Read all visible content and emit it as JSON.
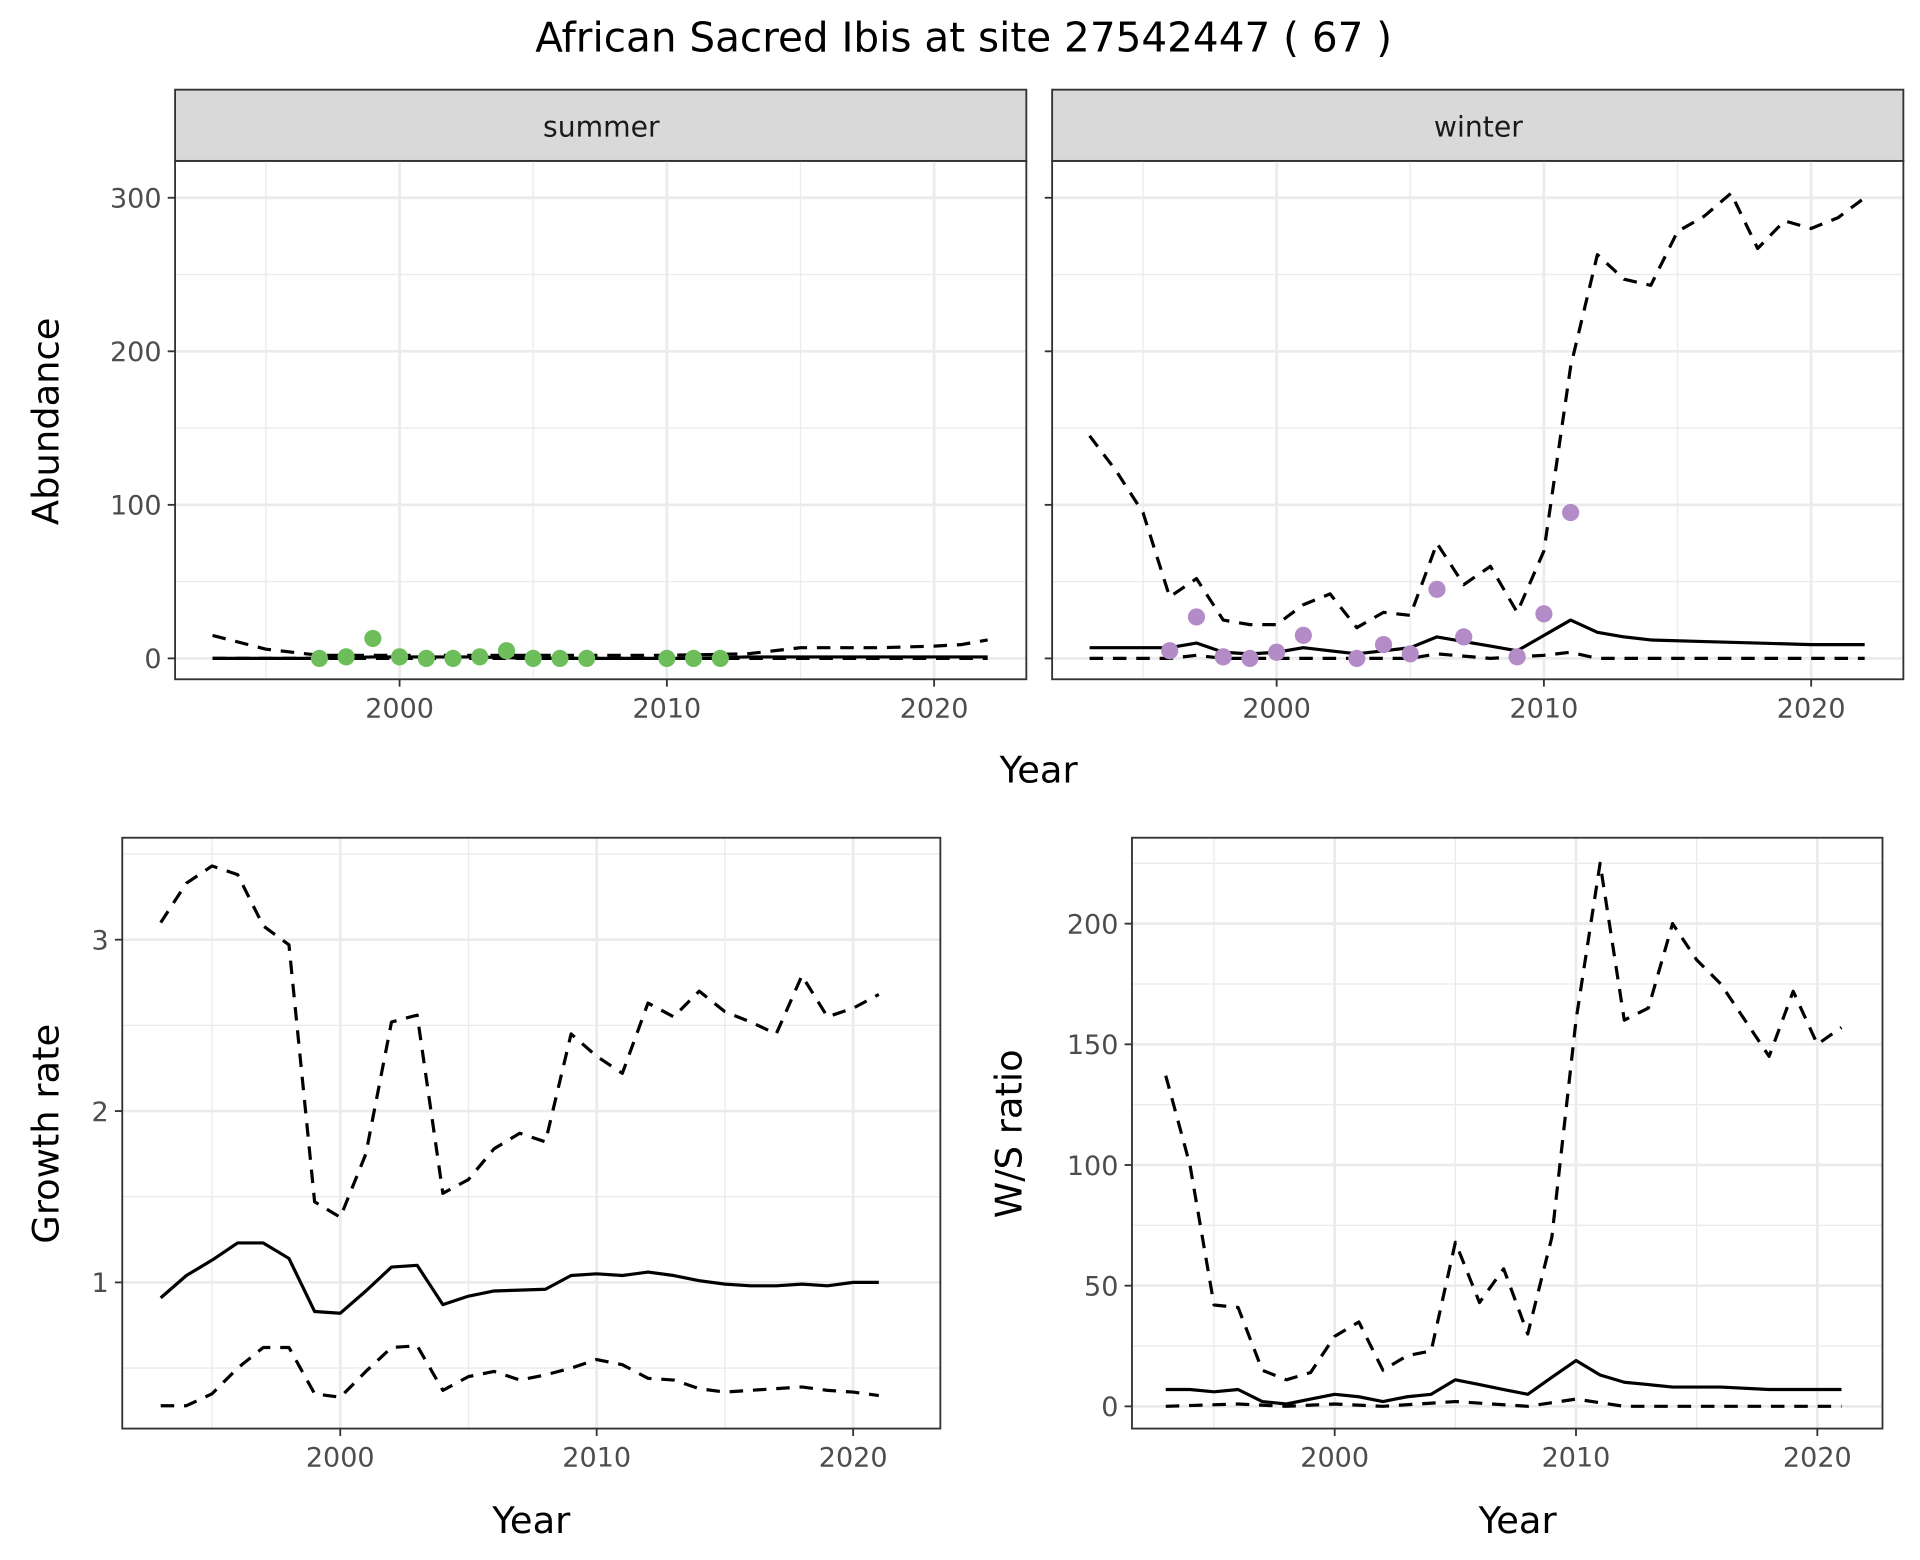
{
  "chart_data": {
    "title": "African Sacred Ibis at site 27542447 ( 67 )",
    "colors": {
      "summer_points": "#6DBE5B",
      "winter_points": "#B28BC7",
      "lines": "#000000",
      "strip_bg": "#D9D9D9",
      "grid": "#EBEBEB"
    },
    "panels": [
      {
        "id": "abundance-summer",
        "type": "line+scatter",
        "strip": "summer",
        "ylabel": "Abundance",
        "xlabel": "Year",
        "xlim": [
          1991.6,
          2023.45
        ],
        "ylim": [
          -13.6,
          324
        ],
        "xticks": [
          2000,
          2010,
          2020
        ],
        "yticks": [
          0,
          100,
          200,
          300
        ],
        "grid": true,
        "points": {
          "x": [
            1997,
            1998,
            1999,
            2000,
            2001,
            2002,
            2003,
            2004,
            2005,
            2006,
            2007,
            2010,
            2011,
            2012
          ],
          "y": [
            0,
            1,
            13,
            1,
            0,
            0,
            1,
            5,
            0,
            0,
            0,
            0,
            0,
            0
          ]
        },
        "series": [
          {
            "style": "solid",
            "x": [
              1993,
              1995,
              1997,
              1999,
              2001,
              2003,
              2005,
              2007,
              2009,
              2011,
              2013,
              2015,
              2017,
              2019,
              2022
            ],
            "y": [
              0,
              0,
              0,
              1,
              1,
              1,
              0,
              0,
              0,
              0,
              1,
              1,
              1,
              1,
              1
            ]
          },
          {
            "style": "dashed",
            "x": [
              1993,
              1995,
              1997,
              2000,
              2005,
              2010,
              2013,
              2015,
              2018,
              2020,
              2021,
              2022
            ],
            "y": [
              15,
              6,
              2,
              2,
              2,
              2,
              3,
              7,
              7,
              8,
              9,
              12
            ]
          },
          {
            "style": "dashed",
            "x": [
              1993,
              2022
            ],
            "y": [
              0,
              0
            ]
          }
        ]
      },
      {
        "id": "abundance-winter",
        "type": "line+scatter",
        "strip": "winter",
        "xlim": [
          1991.6,
          2023.45
        ],
        "ylim": [
          -13.6,
          324
        ],
        "xticks": [
          2000,
          2010,
          2020
        ],
        "yticks": [
          0,
          100,
          200,
          300
        ],
        "grid": true,
        "points": {
          "x": [
            1996,
            1997,
            1998,
            1999,
            2000,
            2001,
            2003,
            2004,
            2005,
            2006,
            2007,
            2009,
            2010,
            2011
          ],
          "y": [
            5,
            27,
            1,
            0,
            4,
            15,
            0,
            9,
            3,
            45,
            14,
            1,
            29,
            95
          ]
        },
        "series": [
          {
            "style": "solid",
            "x": [
              1993,
              1994,
              1995,
              1996,
              1997,
              1998,
              1999,
              2000,
              2001,
              2002,
              2003,
              2004,
              2005,
              2006,
              2007,
              2008,
              2009,
              2010,
              2011,
              2012,
              2013,
              2014,
              2016,
              2018,
              2020,
              2022
            ],
            "y": [
              7,
              7,
              7,
              7,
              10,
              4,
              3,
              4,
              7,
              5,
              3,
              5,
              7,
              14,
              11,
              8,
              5,
              15,
              25,
              17,
              14,
              12,
              11,
              10,
              9,
              9
            ]
          },
          {
            "style": "dashed",
            "x": [
              1993,
              1994,
              1995,
              1996,
              1997,
              1998,
              1999,
              2000,
              2001,
              2002,
              2003,
              2004,
              2005,
              2006,
              2007,
              2008,
              2009,
              2010,
              2011,
              2012,
              2013,
              2014,
              2015,
              2016,
              2017,
              2018,
              2019,
              2020,
              2021,
              2022
            ],
            "y": [
              145,
              122,
              95,
              40,
              52,
              25,
              22,
              22,
              35,
              42,
              20,
              30,
              28,
              75,
              48,
              60,
              30,
              70,
              190,
              263,
              247,
              243,
              278,
              288,
              303,
              267,
              285,
              280,
              287,
              300
            ]
          },
          {
            "style": "dashed",
            "x": [
              1993,
              1996,
              1997,
              1998,
              2005,
              2006,
              2008,
              2010,
              2011,
              2012,
              2022
            ],
            "y": [
              0,
              0,
              2,
              0,
              0,
              3,
              0,
              2,
              4,
              0,
              0
            ]
          }
        ]
      },
      {
        "id": "growth-rate",
        "type": "line",
        "ylabel": "Growth rate",
        "xlabel": "Year",
        "xlim": [
          1991.5,
          2023.4
        ],
        "ylim": [
          0.147,
          3.595
        ],
        "xticks": [
          2000,
          2010,
          2020
        ],
        "yticks": [
          1,
          2,
          3
        ],
        "grid": true,
        "series": [
          {
            "style": "solid",
            "x": [
              1993,
              1994,
              1995,
              1996,
              1997,
              1998,
              1999,
              2000,
              2001,
              2002,
              2003,
              2004,
              2005,
              2006,
              2007,
              2008,
              2009,
              2010,
              2011,
              2012,
              2013,
              2014,
              2015,
              2016,
              2017,
              2018,
              2019,
              2020,
              2021
            ],
            "y": [
              0.91,
              1.04,
              1.13,
              1.23,
              1.23,
              1.14,
              0.83,
              0.82,
              0.95,
              1.09,
              1.1,
              0.87,
              0.92,
              0.95,
              0.955,
              0.96,
              1.04,
              1.05,
              1.04,
              1.06,
              1.04,
              1.01,
              0.99,
              0.98,
              0.98,
              0.99,
              0.98,
              1.0,
              1.0
            ]
          },
          {
            "style": "dashed",
            "x": [
              1993,
              1994,
              1995,
              1996,
              1997,
              1998,
              1999,
              2000,
              2001,
              2002,
              2003,
              2004,
              2005,
              2006,
              2007,
              2008,
              2009,
              2010,
              2011,
              2012,
              2013,
              2014,
              2015,
              2016,
              2017,
              2018,
              2019,
              2020,
              2021
            ],
            "y": [
              3.1,
              3.33,
              3.43,
              3.38,
              3.08,
              2.97,
              1.47,
              1.38,
              1.75,
              2.52,
              2.56,
              1.52,
              1.6,
              1.78,
              1.87,
              1.82,
              2.45,
              2.32,
              2.22,
              2.63,
              2.55,
              2.7,
              2.58,
              2.52,
              2.45,
              2.79,
              2.55,
              2.6,
              2.68
            ]
          },
          {
            "style": "dashed",
            "x": [
              1993,
              1994,
              1995,
              1996,
              1997,
              1998,
              1999,
              2000,
              2001,
              2002,
              2003,
              2004,
              2005,
              2006,
              2007,
              2008,
              2009,
              2010,
              2011,
              2012,
              2013,
              2014,
              2015,
              2016,
              2017,
              2018,
              2019,
              2020,
              2021
            ],
            "y": [
              0.28,
              0.28,
              0.35,
              0.5,
              0.62,
              0.62,
              0.35,
              0.33,
              0.48,
              0.62,
              0.63,
              0.37,
              0.45,
              0.48,
              0.43,
              0.46,
              0.5,
              0.55,
              0.52,
              0.44,
              0.43,
              0.38,
              0.36,
              0.37,
              0.38,
              0.39,
              0.37,
              0.36,
              0.34
            ]
          }
        ]
      },
      {
        "id": "ws-ratio",
        "type": "line",
        "ylabel": "W/S ratio",
        "xlabel": "Year",
        "xlim": [
          1991.6,
          2022.7
        ],
        "ylim": [
          -9.2,
          235.6
        ],
        "xticks": [
          2000,
          2010,
          2020
        ],
        "yticks": [
          0,
          50,
          100,
          150,
          200
        ],
        "grid": true,
        "series": [
          {
            "style": "solid",
            "x": [
              1993,
              1994,
              1995,
              1996,
              1997,
              1998,
              1999,
              2000,
              2001,
              2002,
              2003,
              2004,
              2005,
              2006,
              2007,
              2008,
              2009,
              2010,
              2011,
              2012,
              2013,
              2014,
              2016,
              2018,
              2021
            ],
            "y": [
              7,
              7,
              6,
              7,
              2,
              1,
              3,
              5,
              4,
              2,
              4,
              5,
              11,
              9,
              7,
              5,
              12,
              19,
              13,
              10,
              9,
              8,
              8,
              7,
              7
            ]
          },
          {
            "style": "dashed",
            "x": [
              1993,
              1994,
              1995,
              1996,
              1997,
              1998,
              1999,
              2000,
              2001,
              2002,
              2003,
              2004,
              2005,
              2006,
              2007,
              2008,
              2009,
              2010,
              2011,
              2012,
              2013,
              2014,
              2015,
              2016,
              2017,
              2018,
              2019,
              2020,
              2021
            ],
            "y": [
              137,
              100,
              42,
              41,
              15,
              11,
              14,
              29,
              35,
              15,
              21,
              23,
              68,
              43,
              57,
              30,
              70,
              160,
              225,
              160,
              165,
              200,
              185,
              175,
              160,
              145,
              172,
              150,
              157
            ]
          },
          {
            "style": "dashed",
            "x": [
              1993,
              1996,
              1998,
              2000,
              2002,
              2005,
              2008,
              2010,
              2012,
              2021
            ],
            "y": [
              0,
              1,
              0,
              1,
              0,
              2,
              0,
              3,
              0,
              0
            ]
          }
        ]
      }
    ]
  }
}
